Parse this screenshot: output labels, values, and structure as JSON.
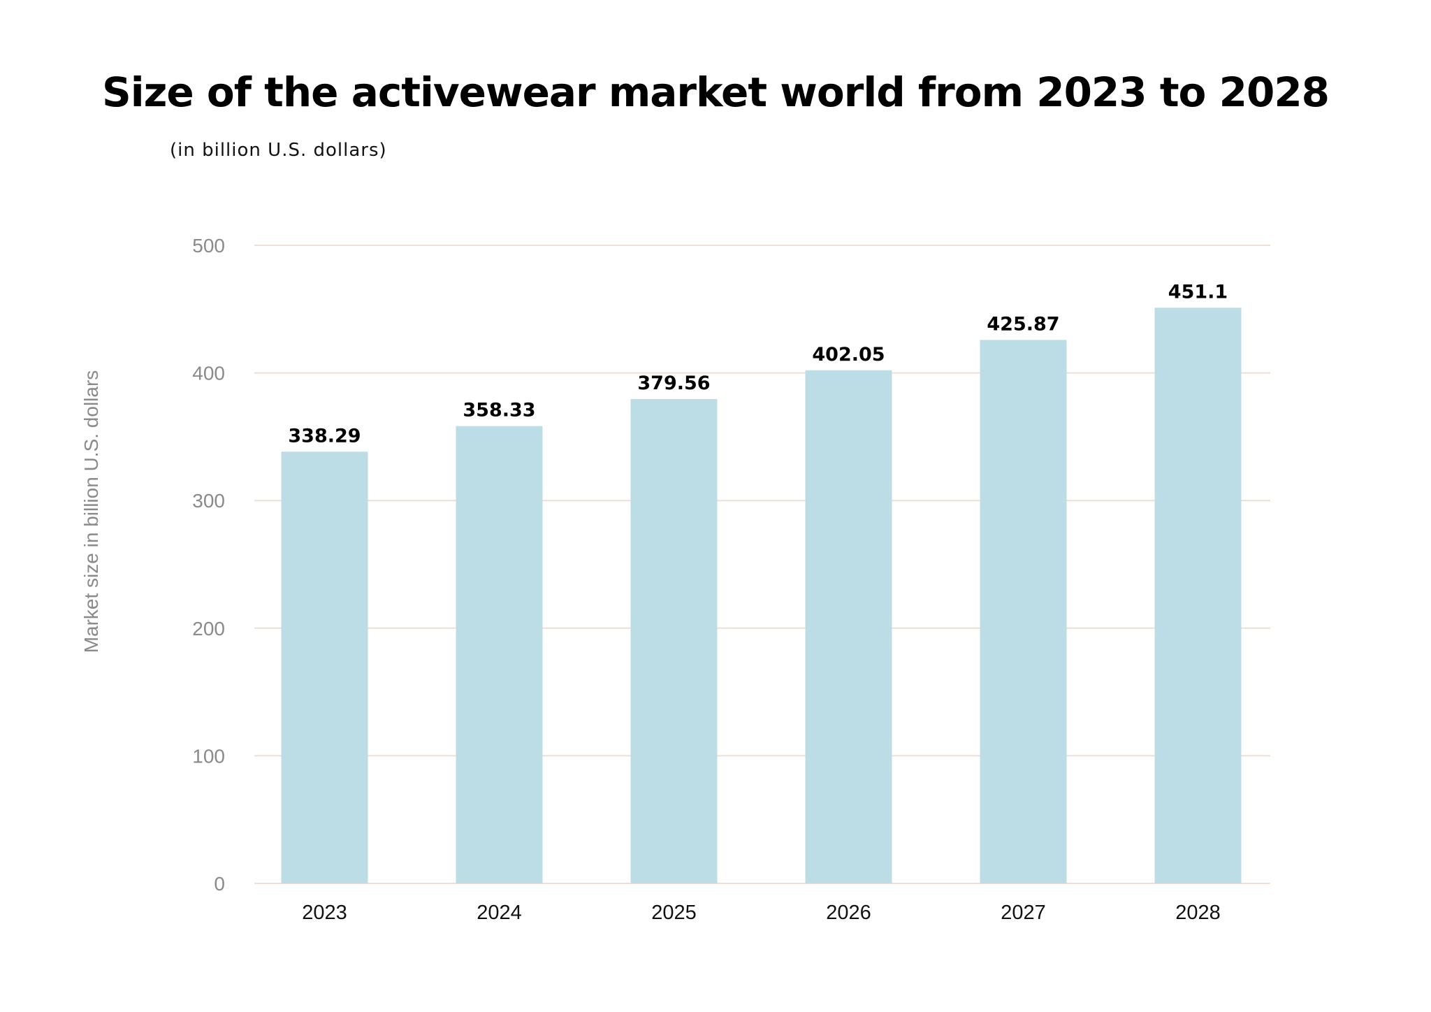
{
  "chart_data": {
    "type": "bar",
    "title": "Size of the activewear market world from 2023 to 2028",
    "subtitle": "(in billion U.S. dollars)",
    "xlabel": "",
    "ylabel": "Market size in billion U.S. dollars",
    "categories": [
      "2023",
      "2024",
      "2025",
      "2026",
      "2027",
      "2028"
    ],
    "values": [
      338.29,
      358.33,
      379.56,
      402.05,
      425.87,
      451.1
    ],
    "value_labels": [
      "338.29",
      "358.33",
      "379.56",
      "402.05",
      "425.87",
      "451.1"
    ],
    "ylim": [
      0,
      500
    ],
    "yticks": [
      0,
      100,
      200,
      300,
      400,
      500
    ],
    "grid": true,
    "legend": "none",
    "colors": {
      "bar": "#bcdde5",
      "grid": "#f0ddd3",
      "axis": "#f0ddd3"
    }
  }
}
